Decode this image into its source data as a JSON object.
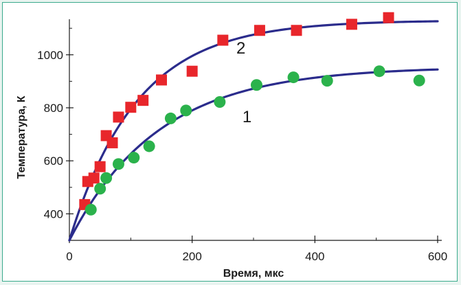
{
  "colors": {
    "frame_border": "#3aaa8c",
    "background": "#e9f4f0",
    "curve": "#2b2c8c",
    "series_squares": "#e8262b",
    "series_circles": "#2bb24c"
  },
  "chart_data": {
    "type": "scatter",
    "xlabel": "Время, мкс",
    "ylabel": "Температура, К",
    "xlim": [
      0,
      600
    ],
    "ylim": [
      300,
      1160
    ],
    "x_ticks": [
      0,
      200,
      400,
      600
    ],
    "y_ticks": [
      400,
      600,
      800,
      1000
    ],
    "grid": false,
    "series": [
      {
        "label": "2",
        "marker": "square",
        "points": [
          [
            25,
            435
          ],
          [
            30,
            522
          ],
          [
            40,
            535
          ],
          [
            50,
            578
          ],
          [
            60,
            695
          ],
          [
            70,
            668
          ],
          [
            80,
            765
          ],
          [
            100,
            802
          ],
          [
            120,
            828
          ],
          [
            150,
            905
          ],
          [
            200,
            938
          ],
          [
            250,
            1055
          ],
          [
            310,
            1092
          ],
          [
            370,
            1092
          ],
          [
            460,
            1115
          ],
          [
            520,
            1140
          ]
        ],
        "fit": {
          "T0": 300,
          "Tinf": 1130,
          "tau": 110
        }
      },
      {
        "label": "1",
        "marker": "circle",
        "points": [
          [
            35,
            416
          ],
          [
            50,
            495
          ],
          [
            60,
            535
          ],
          [
            80,
            588
          ],
          [
            105,
            612
          ],
          [
            130,
            655
          ],
          [
            165,
            760
          ],
          [
            190,
            790
          ],
          [
            245,
            822
          ],
          [
            305,
            886
          ],
          [
            365,
            915
          ],
          [
            420,
            902
          ],
          [
            505,
            938
          ],
          [
            570,
            903
          ]
        ],
        "fit": {
          "T0": 300,
          "Tinf": 955,
          "tau": 145
        }
      }
    ]
  }
}
